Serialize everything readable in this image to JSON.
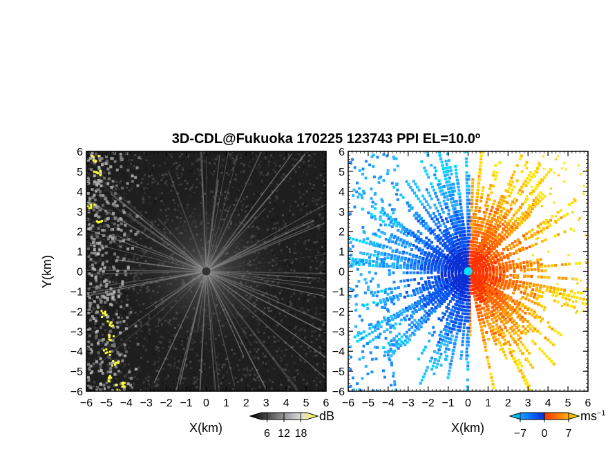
{
  "chart_data": {
    "title": "3D-CDL@Fukuoka 170225 123743 PPI EL=10.0º",
    "panels": [
      {
        "name": "reflectivity",
        "type": "heatmap",
        "xlabel": "X(km)",
        "ylabel": "Y(km)",
        "xlim": [
          -6,
          6
        ],
        "ylim": [
          -6,
          6
        ],
        "xticks": [
          "−6",
          "−5",
          "−4",
          "−3",
          "−2",
          "−1",
          "0",
          "1",
          "2",
          "3",
          "4",
          "5",
          "6"
        ],
        "yticks": [
          "6",
          "5",
          "4",
          "3",
          "2",
          "1",
          "0",
          "−1",
          "−2",
          "−3",
          "−4",
          "−5",
          "−6"
        ],
        "colorbar": {
          "unit": "dB",
          "ticks": [
            "6",
            "12",
            "18"
          ],
          "tick_values": [
            6,
            12,
            18
          ],
          "range": [
            0,
            24
          ],
          "colors": [
            "#000000",
            "#ffffff",
            "#ffff33"
          ]
        }
      },
      {
        "name": "doppler-velocity",
        "type": "heatmap",
        "xlabel": "X(km)",
        "ylabel": "",
        "xlim": [
          -6,
          6
        ],
        "ylim": [
          -6,
          6
        ],
        "xticks": [
          "−6",
          "−5",
          "−4",
          "−3",
          "−2",
          "−1",
          "0",
          "1",
          "2",
          "3",
          "4",
          "5",
          "6"
        ],
        "yticks": [
          "6",
          "5",
          "4",
          "3",
          "2",
          "1",
          "0",
          "−1",
          "−2",
          "−3",
          "−4",
          "−5",
          "−6"
        ],
        "colorbar": {
          "unit": "ms",
          "unit_exp": "−1",
          "ticks": [
            "−7",
            "0",
            "7"
          ],
          "tick_values": [
            -7,
            0,
            7
          ],
          "range": [
            -10,
            10
          ],
          "colors": [
            "#00e5ff",
            "#0a2fd4",
            "#ff3300",
            "#ffe600"
          ]
        }
      }
    ]
  }
}
